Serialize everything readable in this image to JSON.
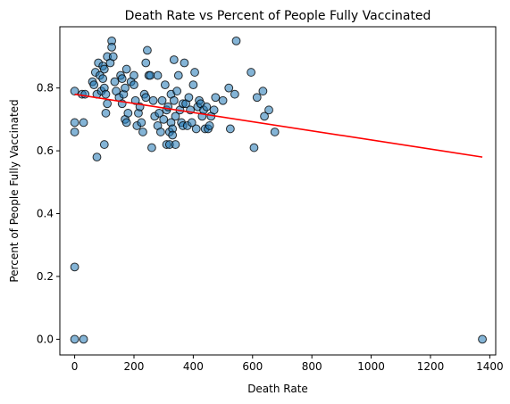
{
  "chart_data": {
    "type": "scatter",
    "title": "Death Rate vs Percent of People Fully Vaccinated",
    "xlabel": "Death Rate",
    "ylabel": "Percent of People Fully Vaccinated",
    "xlim": [
      -50,
      1420
    ],
    "ylim": [
      -0.05,
      0.995
    ],
    "xticks": [
      0,
      200,
      400,
      600,
      800,
      1000,
      1200,
      1400
    ],
    "yticks": [
      0.0,
      0.2,
      0.4,
      0.6,
      0.8
    ],
    "xtick_labels": [
      "0",
      "200",
      "400",
      "600",
      "800",
      "1000",
      "1200",
      "1400"
    ],
    "ytick_labels": [
      "0.0",
      "0.2",
      "0.4",
      "0.6",
      "0.8"
    ],
    "grid": false,
    "colors": {
      "point_fill": "#1f77b4",
      "point_edge": "#000000",
      "fit_line": "#ff0000"
    },
    "points": [
      [
        0,
        0.79
      ],
      [
        0,
        0.69
      ],
      [
        0,
        0.66
      ],
      [
        0,
        0.23
      ],
      [
        0,
        0.0
      ],
      [
        30,
        0.0
      ],
      [
        25,
        0.78
      ],
      [
        35,
        0.78
      ],
      [
        30,
        0.69
      ],
      [
        60,
        0.82
      ],
      [
        65,
        0.81
      ],
      [
        70,
        0.85
      ],
      [
        75,
        0.78
      ],
      [
        75,
        0.58
      ],
      [
        80,
        0.88
      ],
      [
        85,
        0.84
      ],
      [
        90,
        0.79
      ],
      [
        95,
        0.83
      ],
      [
        95,
        0.87
      ],
      [
        100,
        0.86
      ],
      [
        100,
        0.8
      ],
      [
        105,
        0.78
      ],
      [
        110,
        0.9
      ],
      [
        110,
        0.75
      ],
      [
        105,
        0.72
      ],
      [
        100,
        0.62
      ],
      [
        120,
        0.88
      ],
      [
        125,
        0.95
      ],
      [
        125,
        0.93
      ],
      [
        130,
        0.9
      ],
      [
        135,
        0.82
      ],
      [
        140,
        0.79
      ],
      [
        150,
        0.77
      ],
      [
        155,
        0.84
      ],
      [
        160,
        0.83
      ],
      [
        160,
        0.75
      ],
      [
        165,
        0.78
      ],
      [
        170,
        0.8
      ],
      [
        175,
        0.86
      ],
      [
        170,
        0.7
      ],
      [
        175,
        0.69
      ],
      [
        180,
        0.72
      ],
      [
        190,
        0.82
      ],
      [
        200,
        0.81
      ],
      [
        200,
        0.84
      ],
      [
        205,
        0.76
      ],
      [
        210,
        0.68
      ],
      [
        215,
        0.72
      ],
      [
        220,
        0.74
      ],
      [
        225,
        0.69
      ],
      [
        230,
        0.66
      ],
      [
        235,
        0.78
      ],
      [
        240,
        0.77
      ],
      [
        240,
        0.88
      ],
      [
        245,
        0.92
      ],
      [
        250,
        0.84
      ],
      [
        255,
        0.84
      ],
      [
        260,
        0.61
      ],
      [
        265,
        0.76
      ],
      [
        270,
        0.71
      ],
      [
        280,
        0.84
      ],
      [
        280,
        0.68
      ],
      [
        285,
        0.72
      ],
      [
        290,
        0.66
      ],
      [
        295,
        0.76
      ],
      [
        300,
        0.7
      ],
      [
        305,
        0.81
      ],
      [
        310,
        0.73
      ],
      [
        310,
        0.62
      ],
      [
        315,
        0.74
      ],
      [
        320,
        0.66
      ],
      [
        320,
        0.62
      ],
      [
        325,
        0.78
      ],
      [
        325,
        0.69
      ],
      [
        330,
        0.67
      ],
      [
        330,
        0.65
      ],
      [
        335,
        0.89
      ],
      [
        335,
        0.76
      ],
      [
        340,
        0.62
      ],
      [
        340,
        0.71
      ],
      [
        345,
        0.79
      ],
      [
        350,
        0.84
      ],
      [
        355,
        0.73
      ],
      [
        360,
        0.69
      ],
      [
        365,
        0.75
      ],
      [
        365,
        0.68
      ],
      [
        370,
        0.88
      ],
      [
        375,
        0.75
      ],
      [
        380,
        0.68
      ],
      [
        385,
        0.77
      ],
      [
        390,
        0.73
      ],
      [
        395,
        0.69
      ],
      [
        400,
        0.81
      ],
      [
        405,
        0.85
      ],
      [
        410,
        0.67
      ],
      [
        415,
        0.74
      ],
      [
        420,
        0.76
      ],
      [
        425,
        0.75
      ],
      [
        430,
        0.71
      ],
      [
        435,
        0.73
      ],
      [
        440,
        0.67
      ],
      [
        445,
        0.74
      ],
      [
        450,
        0.67
      ],
      [
        455,
        0.68
      ],
      [
        460,
        0.71
      ],
      [
        470,
        0.73
      ],
      [
        475,
        0.77
      ],
      [
        500,
        0.76
      ],
      [
        520,
        0.8
      ],
      [
        525,
        0.67
      ],
      [
        540,
        0.78
      ],
      [
        545,
        0.95
      ],
      [
        595,
        0.85
      ],
      [
        605,
        0.61
      ],
      [
        615,
        0.77
      ],
      [
        635,
        0.79
      ],
      [
        640,
        0.71
      ],
      [
        655,
        0.73
      ],
      [
        675,
        0.66
      ],
      [
        1375,
        0.0
      ]
    ],
    "fit_line": {
      "x": [
        0,
        1375
      ],
      "y": [
        0.78,
        0.58
      ]
    }
  }
}
